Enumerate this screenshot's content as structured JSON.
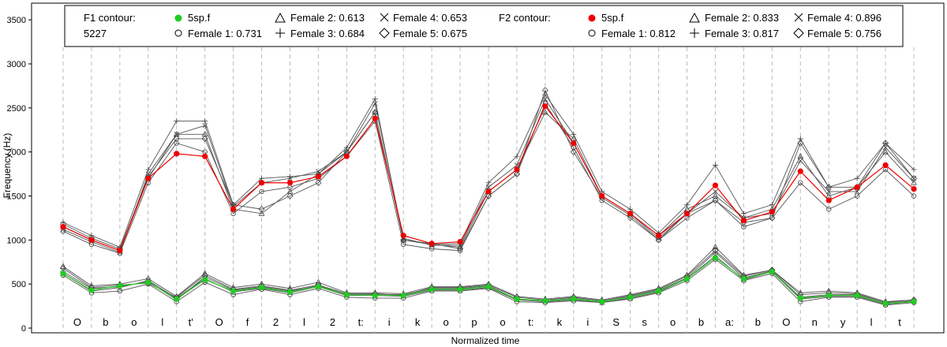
{
  "chart_data": {
    "type": "line",
    "title": "",
    "xlabel": "Normalized time",
    "ylabel": "Frequency (Hz)",
    "ylim": [
      0,
      3600
    ],
    "yticks": [
      0,
      500,
      1000,
      1500,
      2000,
      2500,
      3000,
      3500
    ],
    "grid": "vertical dashed lines at segment boundaries",
    "legend_position": "top",
    "segments": [
      "O",
      "b",
      "o",
      "l",
      "t'",
      "O",
      "f",
      "2",
      "l",
      "2",
      "t:",
      "i",
      "k",
      "o",
      "p",
      "o",
      "t:",
      "k",
      "i",
      "S",
      "s",
      "o",
      "b",
      "a:",
      "b",
      "O",
      "n",
      "y",
      "l",
      "t"
    ],
    "legend": {
      "f1_title": "F1 contour:",
      "f1_value": "5227",
      "f2_title": "F2 contour:",
      "f1_entries": [
        {
          "marker": "filled-circle-green",
          "label": "5sp.f"
        },
        {
          "marker": "circle",
          "label": "Female 1: 0.731"
        },
        {
          "marker": "triangle",
          "label": "Female 2: 0.613"
        },
        {
          "marker": "plus",
          "label": "Female 3: 0.684"
        },
        {
          "marker": "cross",
          "label": "Female 4: 0.653"
        },
        {
          "marker": "diamond",
          "label": "Female 5: 0.675"
        }
      ],
      "f2_entries": [
        {
          "marker": "filled-circle-red",
          "label": "5sp.f"
        },
        {
          "marker": "circle",
          "label": "Female 1: 0.812"
        },
        {
          "marker": "triangle",
          "label": "Female 2: 0.833"
        },
        {
          "marker": "plus",
          "label": "Female 3: 0.817"
        },
        {
          "marker": "cross",
          "label": "Female 4: 0.896"
        },
        {
          "marker": "diamond",
          "label": "Female 5: 0.756"
        }
      ]
    },
    "x_range": [
      0,
      30
    ],
    "f2_average": {
      "name": "5sp.f",
      "color": "#ee0000",
      "x": [
        0,
        1,
        2,
        3,
        4,
        5,
        6,
        7,
        8,
        9,
        10,
        11,
        12,
        13,
        14,
        15,
        16,
        17,
        18,
        19,
        20,
        21,
        22,
        23,
        24,
        25,
        26,
        27,
        28,
        29,
        30
      ],
      "y": [
        1150,
        1000,
        880,
        1700,
        1980,
        1950,
        1350,
        1650,
        1650,
        1720,
        1950,
        2380,
        1050,
        960,
        980,
        1550,
        1800,
        2520,
        2100,
        1500,
        1300,
        1050,
        1300,
        1620,
        1220,
        1320,
        1780,
        1450,
        1600,
        1850,
        1580
      ]
    },
    "f1_average": {
      "name": "5sp.f",
      "color": "#22cc22",
      "x": [
        0,
        1,
        2,
        3,
        4,
        5,
        6,
        7,
        8,
        9,
        10,
        11,
        12,
        13,
        14,
        15,
        16,
        17,
        18,
        19,
        20,
        21,
        22,
        23,
        24,
        25,
        26,
        27,
        28,
        29,
        30
      ],
      "y": [
        620,
        430,
        480,
        520,
        330,
        550,
        420,
        460,
        410,
        470,
        380,
        370,
        370,
        440,
        440,
        470,
        330,
        310,
        330,
        300,
        350,
        420,
        560,
        800,
        560,
        640,
        340,
        370,
        370,
        280,
        300
      ]
    },
    "f2_speakers": [
      {
        "name": "Female 1",
        "x": [
          0,
          1,
          2,
          3,
          4,
          5,
          6,
          7,
          8,
          9,
          10,
          11,
          12,
          13,
          14,
          15,
          16,
          17,
          18,
          19,
          20,
          21,
          22,
          23,
          24,
          25,
          26,
          27,
          28,
          29,
          30
        ],
        "y": [
          1100,
          950,
          850,
          1650,
          2100,
          2000,
          1300,
          1550,
          1600,
          1700,
          1950,
          2350,
          950,
          900,
          880,
          1500,
          1750,
          2550,
          2050,
          1450,
          1250,
          1000,
          1250,
          1450,
          1150,
          1250,
          1650,
          1350,
          1500,
          1800,
          1500
        ]
      },
      {
        "name": "Female 2",
        "x": [
          0,
          1,
          2,
          3,
          4,
          5,
          6,
          7,
          8,
          9,
          10,
          11,
          12,
          13,
          14,
          15,
          16,
          17,
          18,
          19,
          20,
          21,
          22,
          23,
          24,
          25,
          26,
          27,
          28,
          29,
          30
        ],
        "y": [
          1150,
          1000,
          880,
          1700,
          2200,
          2200,
          1350,
          1300,
          1550,
          1750,
          2000,
          2450,
          1000,
          950,
          920,
          1550,
          1800,
          2450,
          2150,
          1500,
          1300,
          1050,
          1350,
          1500,
          1250,
          1350,
          1950,
          1500,
          1600,
          2000,
          1650
        ]
      },
      {
        "name": "Female 3",
        "x": [
          0,
          1,
          2,
          3,
          4,
          5,
          6,
          7,
          8,
          9,
          10,
          11,
          12,
          13,
          14,
          15,
          16,
          17,
          18,
          19,
          20,
          21,
          22,
          23,
          24,
          25,
          26,
          27,
          28,
          29,
          30
        ],
        "y": [
          1200,
          1050,
          920,
          1800,
          2350,
          2350,
          1400,
          1700,
          1720,
          1750,
          2050,
          2600,
          1000,
          950,
          960,
          1650,
          1950,
          2650,
          2200,
          1550,
          1350,
          1080,
          1400,
          1850,
          1300,
          1400,
          2150,
          1600,
          1700,
          2100,
          1800
        ]
      },
      {
        "name": "Female 4",
        "x": [
          0,
          1,
          2,
          3,
          4,
          5,
          6,
          7,
          8,
          9,
          10,
          11,
          12,
          13,
          14,
          15,
          16,
          17,
          18,
          19,
          20,
          21,
          22,
          23,
          24,
          25,
          26,
          27,
          28,
          29,
          30
        ],
        "y": [
          1120,
          980,
          860,
          1750,
          2200,
          2300,
          1380,
          1650,
          1700,
          1780,
          2000,
          2550,
          1020,
          940,
          940,
          1600,
          1850,
          2600,
          2100,
          1500,
          1300,
          1020,
          1300,
          1550,
          1250,
          1300,
          1900,
          1550,
          1550,
          2050,
          1700
        ]
      },
      {
        "name": "Female 5",
        "x": [
          0,
          1,
          2,
          3,
          4,
          5,
          6,
          7,
          8,
          9,
          10,
          11,
          12,
          13,
          14,
          15,
          16,
          17,
          18,
          19,
          20,
          21,
          22,
          23,
          24,
          25,
          26,
          27,
          28,
          29,
          30
        ],
        "y": [
          1180,
          1020,
          900,
          1720,
          2150,
          2150,
          1400,
          1350,
          1500,
          1650,
          2000,
          2450,
          1000,
          960,
          900,
          1500,
          1750,
          2700,
          2000,
          1480,
          1280,
          1000,
          1300,
          1450,
          1200,
          1250,
          2100,
          1600,
          1600,
          2100,
          1700
        ]
      }
    ],
    "f1_speakers": [
      {
        "name": "Female 1",
        "x": [
          0,
          1,
          2,
          3,
          4,
          5,
          6,
          7,
          8,
          9,
          10,
          11,
          12,
          13,
          14,
          15,
          16,
          17,
          18,
          19,
          20,
          21,
          22,
          23,
          24,
          25,
          26,
          27,
          28,
          29,
          30
        ],
        "y": [
          600,
          400,
          420,
          500,
          300,
          520,
          380,
          440,
          380,
          450,
          350,
          340,
          340,
          420,
          420,
          450,
          300,
          290,
          310,
          290,
          330,
          400,
          540,
          780,
          540,
          620,
          300,
          350,
          350,
          260,
          290
        ]
      },
      {
        "name": "Female 2",
        "x": [
          0,
          1,
          2,
          3,
          4,
          5,
          6,
          7,
          8,
          9,
          10,
          11,
          12,
          13,
          14,
          15,
          16,
          17,
          18,
          19,
          20,
          21,
          22,
          23,
          24,
          25,
          26,
          27,
          28,
          29,
          30
        ],
        "y": [
          700,
          480,
          500,
          560,
          360,
          620,
          460,
          500,
          450,
          520,
          400,
          400,
          390,
          470,
          470,
          500,
          360,
          330,
          360,
          320,
          380,
          450,
          600,
          920,
          600,
          660,
          400,
          420,
          400,
          300,
          320
        ]
      },
      {
        "name": "Female 3",
        "x": [
          0,
          1,
          2,
          3,
          4,
          5,
          6,
          7,
          8,
          9,
          10,
          11,
          12,
          13,
          14,
          15,
          16,
          17,
          18,
          19,
          20,
          21,
          22,
          23,
          24,
          25,
          26,
          27,
          28,
          29,
          30
        ],
        "y": [
          640,
          450,
          470,
          530,
          320,
          580,
          430,
          470,
          420,
          480,
          380,
          380,
          380,
          450,
          450,
          480,
          330,
          310,
          340,
          300,
          360,
          430,
          570,
          860,
          570,
          650,
          350,
          380,
          380,
          280,
          310
        ]
      },
      {
        "name": "Female 4",
        "x": [
          0,
          1,
          2,
          3,
          4,
          5,
          6,
          7,
          8,
          9,
          10,
          11,
          12,
          13,
          14,
          15,
          16,
          17,
          18,
          19,
          20,
          21,
          22,
          23,
          24,
          25,
          26,
          27,
          28,
          29,
          30
        ],
        "y": [
          620,
          420,
          460,
          540,
          340,
          560,
          410,
          450,
          400,
          470,
          370,
          370,
          360,
          430,
          430,
          460,
          320,
          300,
          320,
          290,
          340,
          410,
          560,
          820,
          550,
          640,
          330,
          360,
          360,
          270,
          300
        ]
      },
      {
        "name": "Female 5",
        "x": [
          0,
          1,
          2,
          3,
          4,
          5,
          6,
          7,
          8,
          9,
          10,
          11,
          12,
          13,
          14,
          15,
          16,
          17,
          18,
          19,
          20,
          21,
          22,
          23,
          24,
          25,
          26,
          27,
          28,
          29,
          30
        ],
        "y": [
          680,
          460,
          490,
          510,
          350,
          600,
          440,
          480,
          430,
          490,
          390,
          390,
          370,
          460,
          460,
          490,
          350,
          320,
          350,
          310,
          370,
          440,
          590,
          880,
          590,
          660,
          380,
          400,
          390,
          290,
          320
        ]
      }
    ]
  }
}
